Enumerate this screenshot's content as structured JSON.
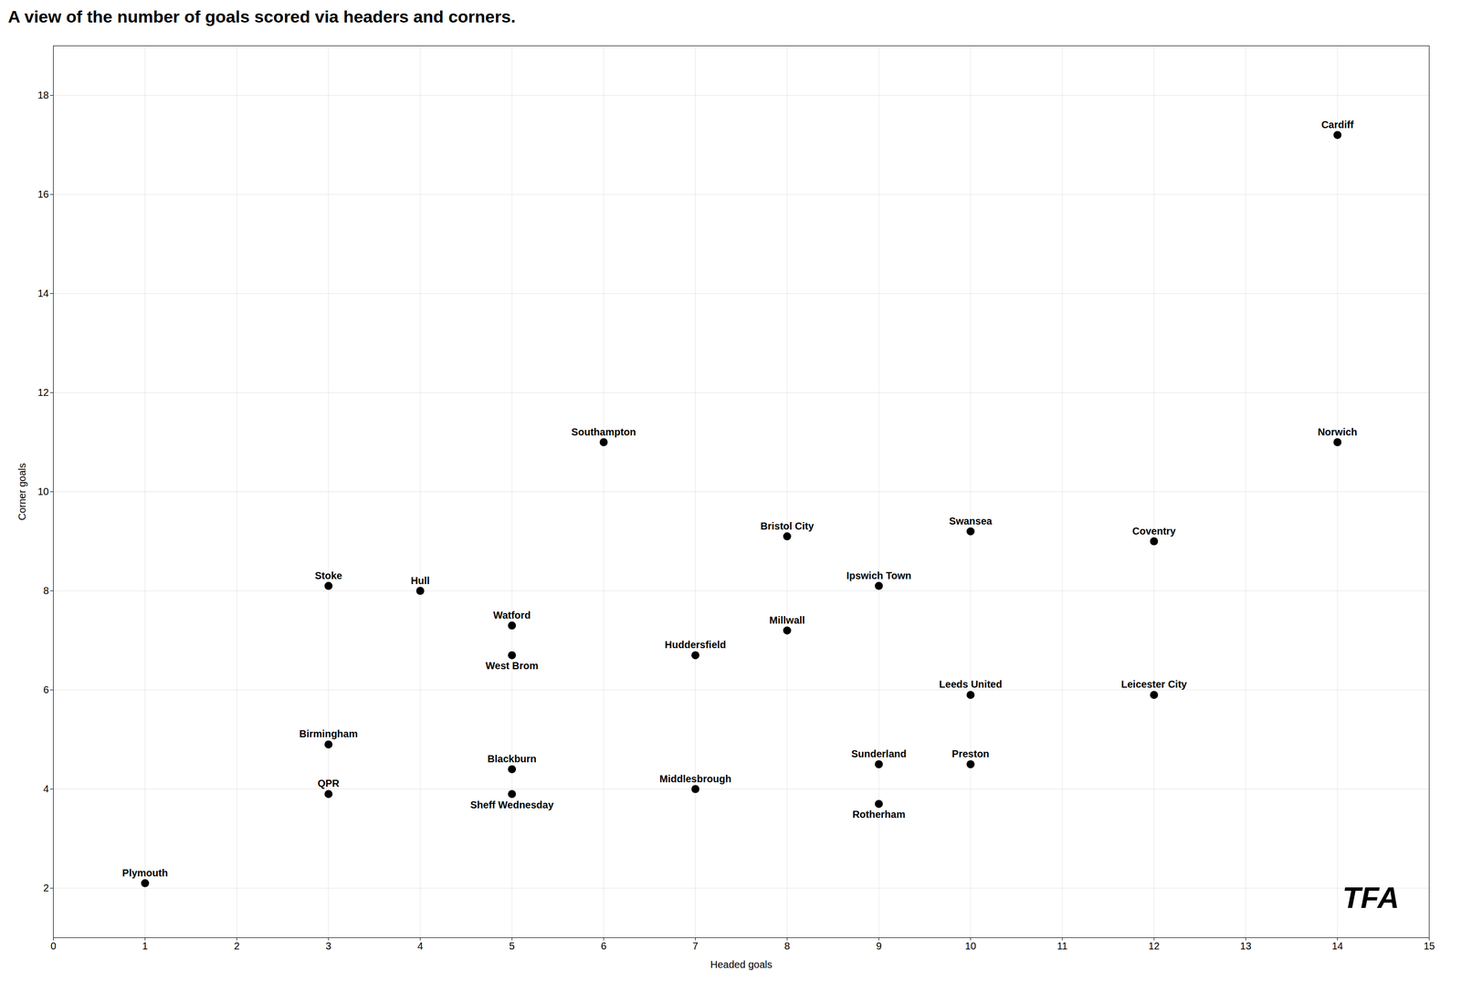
{
  "chart_data": {
    "type": "scatter",
    "title": "A view of the number of goals scored via headers and corners.",
    "x_label": "Headed goals",
    "y_label": "Corner goals",
    "xlim": [
      0,
      15
    ],
    "ylim": [
      1,
      19
    ],
    "xticks": [
      0,
      1,
      2,
      3,
      4,
      5,
      6,
      7,
      8,
      9,
      10,
      11,
      12,
      13,
      14,
      15
    ],
    "yticks": [
      2,
      4,
      6,
      8,
      10,
      12,
      14,
      16,
      18
    ],
    "grid": true,
    "labels": [
      "Plymouth",
      "Cardiff",
      "Norwich",
      "Southampton",
      "Bristol City",
      "Swansea",
      "Ipswich Town",
      "Coventry",
      "Stoke",
      "Hull",
      "Watford",
      "Millwall",
      "West Brom",
      "Huddersfield",
      "Leeds United",
      "Leicester City",
      "Birmingham",
      "QPR",
      "Blackburn",
      "Sheff Wednesday",
      "Middlesbrough",
      "Sunderland",
      "Preston",
      "Rotherham"
    ],
    "x": [
      1,
      14,
      14,
      6,
      8,
      10,
      9,
      12,
      3,
      4,
      5,
      8,
      5,
      7,
      10,
      12,
      3,
      3,
      5,
      5,
      7,
      9,
      10,
      9
    ],
    "y": [
      2.1,
      17.2,
      11.0,
      11.0,
      9.1,
      9.2,
      8.1,
      9.0,
      8.1,
      8.0,
      7.3,
      7.2,
      6.7,
      6.7,
      5.9,
      5.9,
      4.9,
      3.9,
      4.4,
      3.9,
      4.0,
      4.5,
      4.5,
      3.7
    ],
    "annotations": [
      {
        "text": "TFA"
      }
    ]
  }
}
